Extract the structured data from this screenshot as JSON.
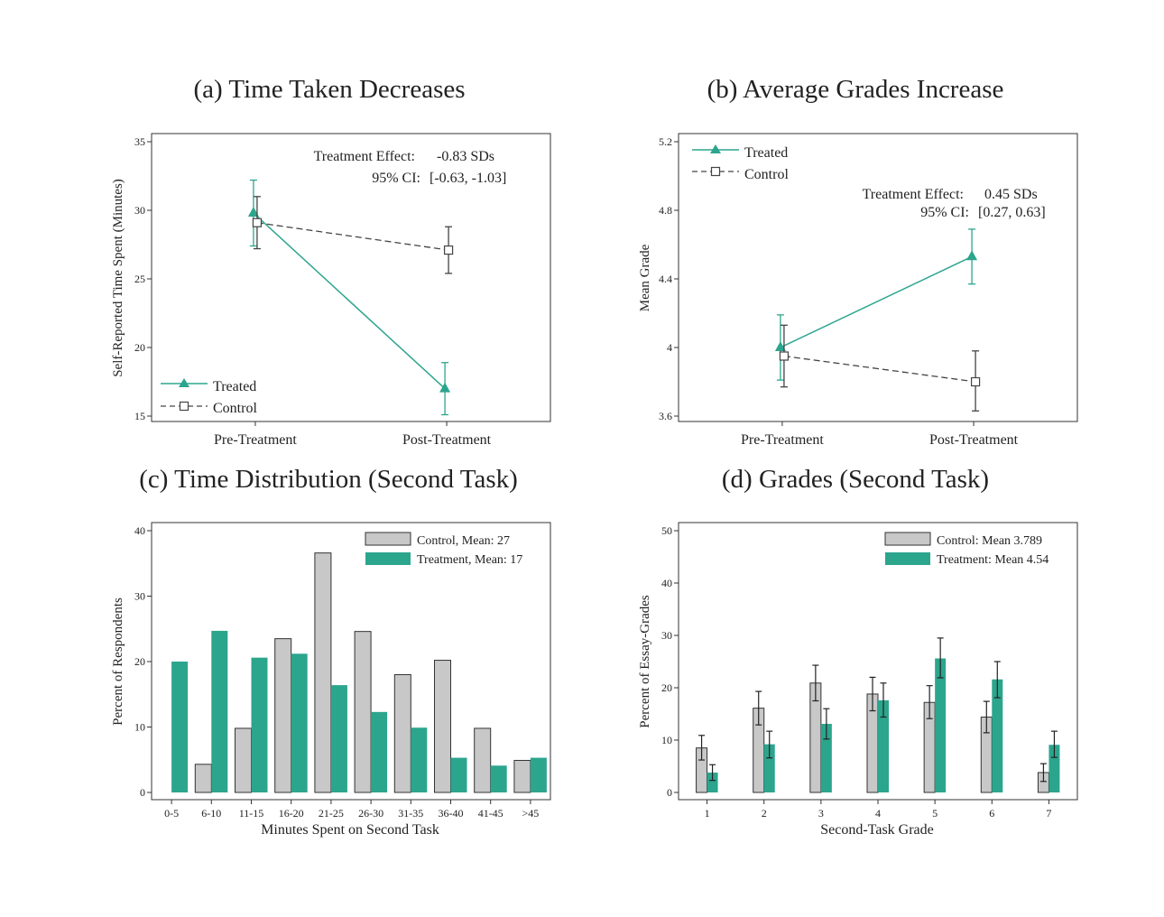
{
  "chart_data": [
    {
      "panel": "a",
      "type": "line",
      "title": "(a) Time Taken Decreases",
      "xlabel": "",
      "ylabel": "Self-Reported Time Spent (Minutes)",
      "categories": [
        "Pre-Treatment",
        "Post-Treatment"
      ],
      "ylim": [
        15,
        35
      ],
      "yticks": [
        15,
        20,
        25,
        30,
        35
      ],
      "series": [
        {
          "name": "Treated",
          "color": "#2ca58d",
          "marker": "triangle",
          "dash": false,
          "values": [
            29.8,
            17.0
          ],
          "ci_low": [
            27.4,
            15.1
          ],
          "ci_high": [
            32.2,
            18.9
          ]
        },
        {
          "name": "Control",
          "color": "#444444",
          "marker": "square",
          "dash": true,
          "values": [
            29.1,
            27.1
          ],
          "ci_low": [
            27.2,
            25.4
          ],
          "ci_high": [
            31.0,
            28.8
          ]
        }
      ],
      "annotation": {
        "effect_label": "Treatment Effect:",
        "effect_value": "-0.83 SDs",
        "ci_label": "95% CI:",
        "ci_value": "[-0.63, -1.03]"
      },
      "legend_position": "bottom-left",
      "grid": false
    },
    {
      "panel": "b",
      "type": "line",
      "title": "(b) Average Grades Increase",
      "xlabel": "",
      "ylabel": "Mean Grade",
      "categories": [
        "Pre-Treatment",
        "Post-Treatment"
      ],
      "ylim": [
        3.6,
        5.2
      ],
      "yticks": [
        "3.6",
        "4",
        "4.4",
        "4.8",
        "5.2"
      ],
      "series": [
        {
          "name": "Treated",
          "color": "#2ca58d",
          "marker": "triangle",
          "dash": false,
          "values": [
            4.0,
            4.53
          ],
          "ci_low": [
            3.81,
            4.37
          ],
          "ci_high": [
            4.19,
            4.69
          ]
        },
        {
          "name": "Control",
          "color": "#444444",
          "marker": "square",
          "dash": true,
          "values": [
            3.95,
            3.8
          ],
          "ci_low": [
            3.77,
            3.63
          ],
          "ci_high": [
            4.13,
            3.98
          ]
        }
      ],
      "annotation": {
        "effect_label": "Treatment Effect:",
        "effect_value": "0.45 SDs",
        "ci_label": "95% CI:",
        "ci_value": "[0.27, 0.63]"
      },
      "legend_position": "top-left",
      "grid": false
    },
    {
      "panel": "c",
      "type": "bar",
      "title": "(c) Time Distribution (Second Task)",
      "xlabel": "Minutes Spent on Second Task",
      "ylabel": "Percent of Respondents",
      "categories": [
        "0-5",
        "6-10",
        "11-15",
        "16-20",
        "21-25",
        "26-30",
        "31-35",
        "36-40",
        "41-45",
        ">45"
      ],
      "ylim": [
        0,
        40
      ],
      "yticks": [
        0,
        10,
        20,
        30,
        40
      ],
      "series": [
        {
          "name": "Control, Mean: 27",
          "color": "#c8c8c8",
          "values": [
            0,
            4.3,
            9.8,
            23.5,
            36.6,
            24.6,
            18.0,
            20.2,
            9.8,
            4.9
          ]
        },
        {
          "name": "Treatment, Mean: 17",
          "color": "#2ca58d",
          "values": [
            20.0,
            24.7,
            20.6,
            21.2,
            16.4,
            12.3,
            9.9,
            5.3,
            4.1,
            5.3
          ]
        }
      ],
      "legend_position": "top-right",
      "grid": false
    },
    {
      "panel": "d",
      "type": "bar",
      "title": "(d) Grades (Second Task)",
      "xlabel": "Second-Task Grade",
      "ylabel": "Percent of Essay-Grades",
      "categories": [
        "1",
        "2",
        "3",
        "4",
        "5",
        "6",
        "7"
      ],
      "ylim": [
        0,
        50
      ],
      "yticks": [
        0,
        10,
        20,
        30,
        40,
        50
      ],
      "series": [
        {
          "name": "Control: Mean 3.789",
          "color": "#c8c8c8",
          "values": [
            8.5,
            16.1,
            20.9,
            18.8,
            17.2,
            14.4,
            3.8
          ],
          "ci_low": [
            6.2,
            12.9,
            17.5,
            15.6,
            14.1,
            11.4,
            2.1
          ],
          "ci_high": [
            10.9,
            19.3,
            24.3,
            22.0,
            20.4,
            17.4,
            5.5
          ]
        },
        {
          "name": "Treatment: Mean 4.54",
          "color": "#2ca58d",
          "values": [
            3.8,
            9.2,
            13.1,
            17.6,
            25.6,
            21.6,
            9.1
          ],
          "ci_low": [
            2.3,
            6.6,
            10.2,
            14.4,
            21.9,
            18.1,
            6.7
          ],
          "ci_high": [
            5.3,
            11.7,
            16.0,
            20.9,
            29.5,
            25.0,
            11.7
          ]
        }
      ],
      "legend_position": "top-right",
      "grid": false
    }
  ]
}
